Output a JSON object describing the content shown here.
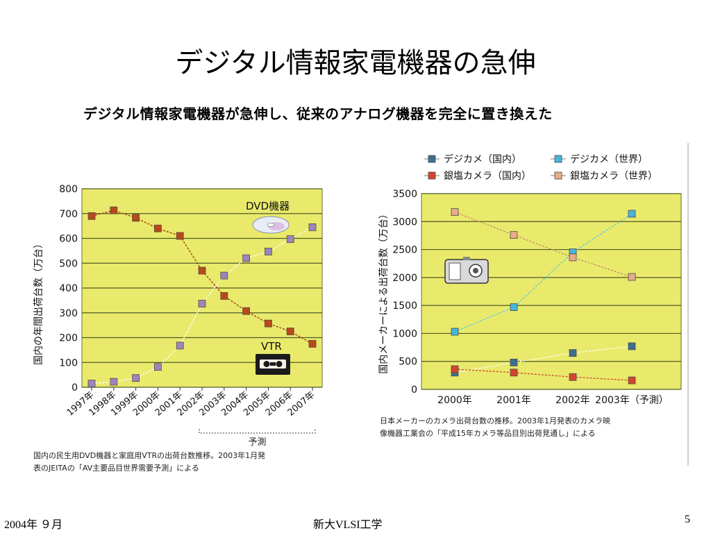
{
  "slide": {
    "title": "デジタル情報家電機器の急伸",
    "subtitle": "デジタル情報家電機器が急伸し、従来のアナログ機器を完全に置き換えた",
    "footer_date": "2004年 ９月",
    "footer_org": "新大VLSI工学",
    "page_number": "5"
  },
  "colors": {
    "plot_bg": "#e9ea6c",
    "grid": "#4e5a22",
    "dvd_marker": "#9a86bd",
    "dvd_line": "#ffffff",
    "vtr_marker": "#b74a1c",
    "vtr_line": "#a33a12",
    "digicam_domestic": "#3c6f8e",
    "digicam_world": "#47b5d9",
    "silver_domestic": "#d3452c",
    "silver_world": "#e7ac8a"
  },
  "chart_data": [
    {
      "type": "line",
      "ylabel": "国内の年間出荷台数（万台）",
      "categories": [
        "1997年",
        "1998年",
        "1999年",
        "2000年",
        "2001年",
        "2002年",
        "2003年",
        "2004年",
        "2005年",
        "2006年",
        "2007年"
      ],
      "yticks": [
        "0",
        "100",
        "200",
        "300",
        "400",
        "500",
        "600",
        "700",
        "800"
      ],
      "ylim": [
        0,
        800
      ],
      "grid": true,
      "series": [
        {
          "name": "DVD機器",
          "values": [
            15,
            22,
            37,
            82,
            168,
            337,
            450,
            520,
            547,
            597,
            645
          ]
        },
        {
          "name": "VTR",
          "values": [
            690,
            713,
            683,
            640,
            610,
            470,
            368,
            307,
            257,
            225,
            175
          ]
        }
      ],
      "forecast_label": "予測",
      "caption_lines": [
        "国内の民生用DVD機器と家庭用VTRの出荷台数推移。2003年1月発",
        "表のJEITAの「AV主要品目世界需要予測」による"
      ]
    },
    {
      "type": "line",
      "ylabel": "国内メーカーによる出荷台数（万台）",
      "categories": [
        "2000年",
        "2001年",
        "2002年",
        "2003年（予測）"
      ],
      "yticks": [
        "0",
        "500",
        "1000",
        "1500",
        "2000",
        "2500",
        "3000",
        "3500"
      ],
      "ylim": [
        0,
        3500
      ],
      "grid": true,
      "legend": [
        "デジカメ（国内）",
        "デジカメ（世界）",
        "銀塩カメラ（国内）",
        "銀塩カメラ（世界）"
      ],
      "legend_position": "top",
      "series": [
        {
          "name": "デジカメ（国内）",
          "values": [
            300,
            480,
            650,
            770
          ]
        },
        {
          "name": "デジカメ（世界）",
          "values": [
            1030,
            1470,
            2450,
            3140
          ]
        },
        {
          "name": "銀塩カメラ（国内）",
          "values": [
            360,
            300,
            220,
            160
          ]
        },
        {
          "name": "銀塩カメラ（世界）",
          "values": [
            3170,
            2760,
            2360,
            2010
          ]
        }
      ],
      "caption_lines": [
        "日本メーカーのカメラ出荷台数の推移。2003年1月発表のカメラ映",
        "像機器工業会の「平成15年カメラ等品目別出荷見通し」による"
      ]
    }
  ]
}
